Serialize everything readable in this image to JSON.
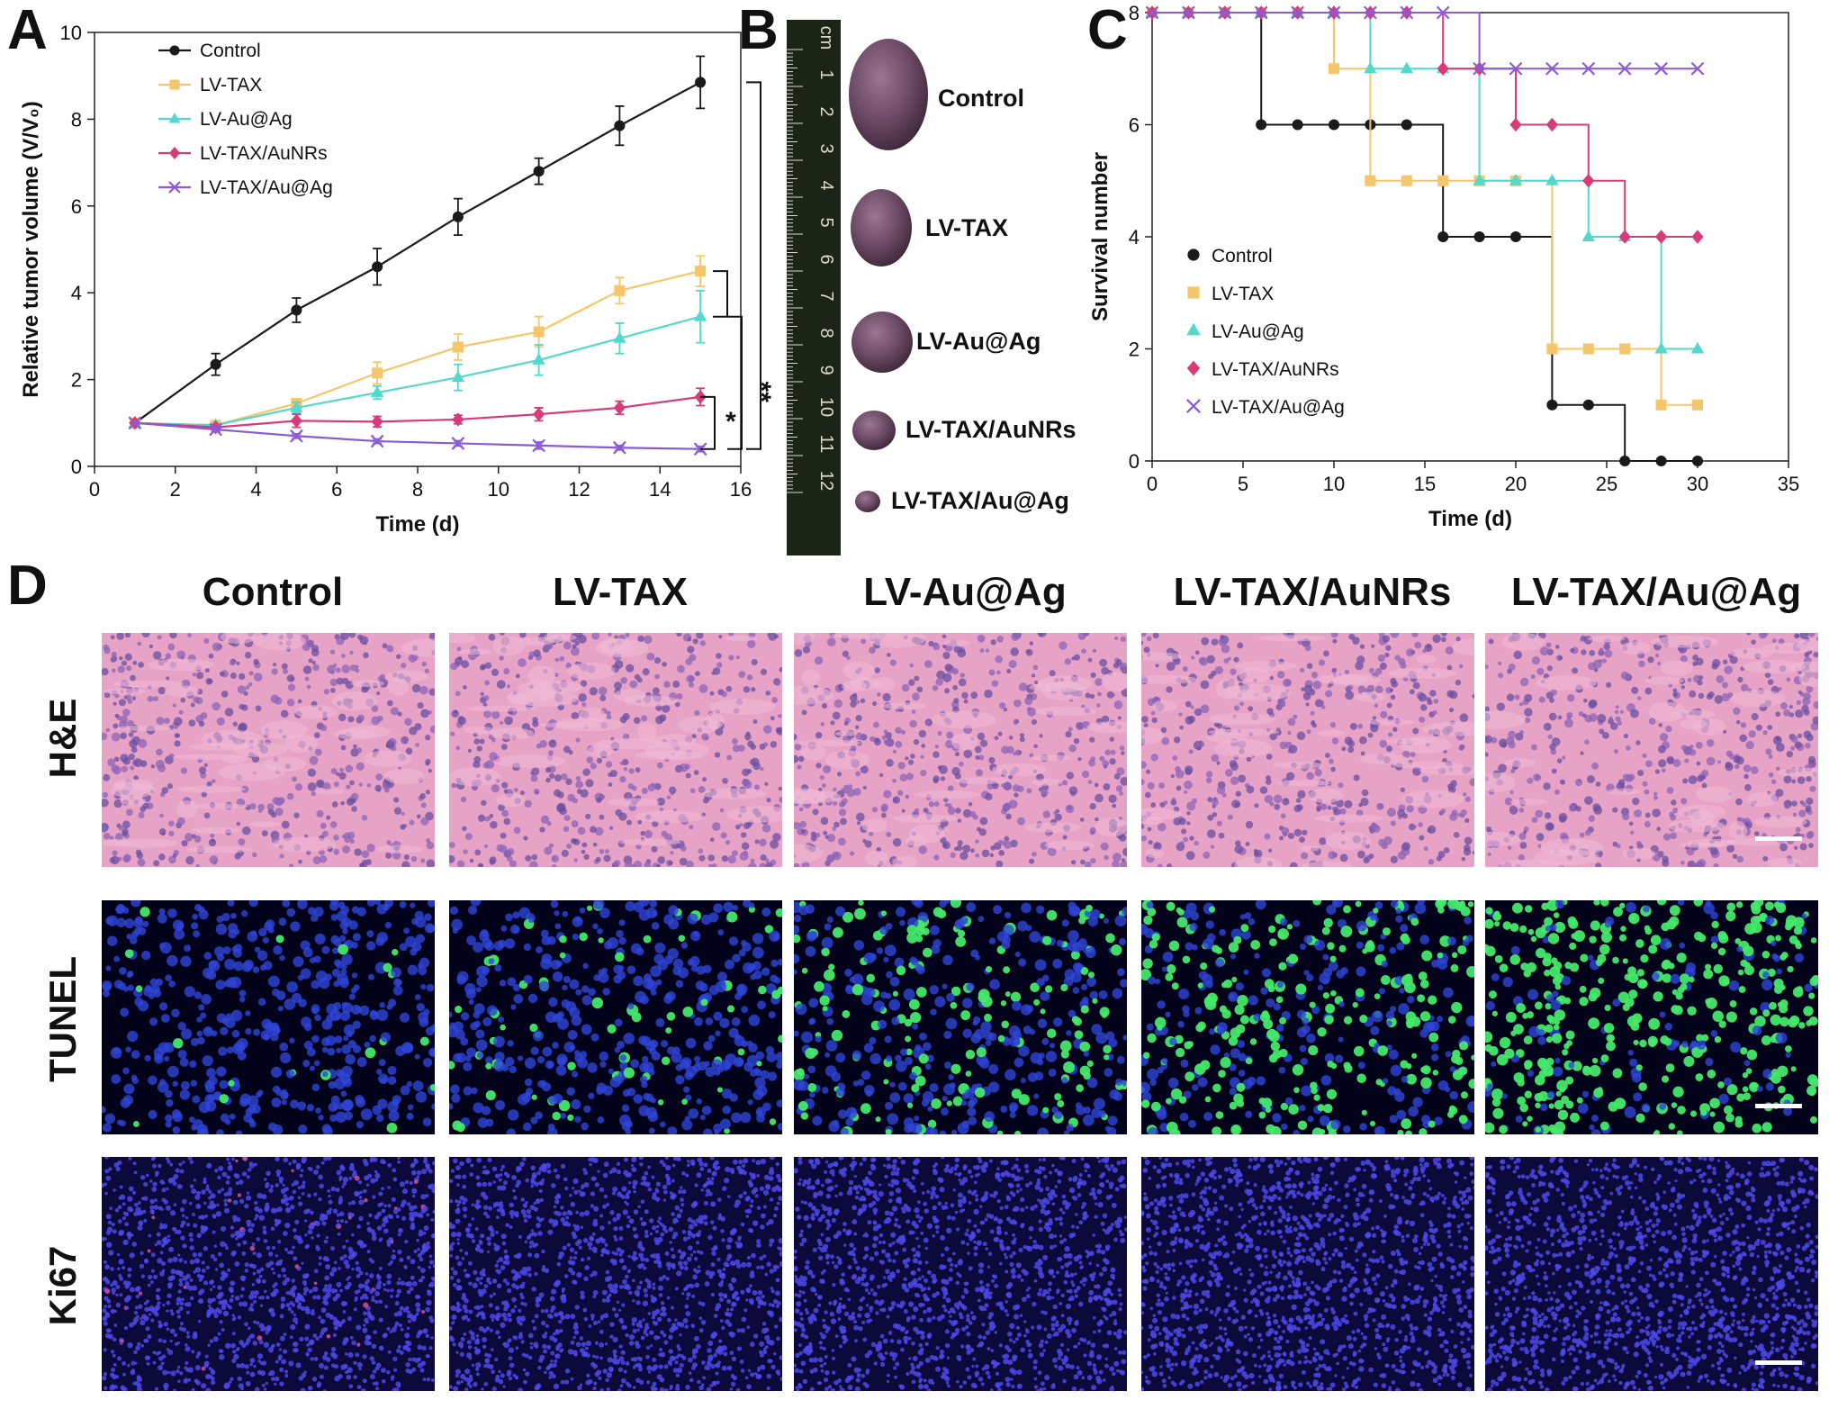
{
  "panels": {
    "a": "A",
    "b": "B",
    "c": "C",
    "d": "D"
  },
  "colors": {
    "Control": "#1a1a1a",
    "LV-TAX": "#f6c66a",
    "LV-Au@Ag": "#52d8cc",
    "LV-TAX/AuNRs": "#d93a7a",
    "LV-TAX/Au@Ag": "#8a5bd6"
  },
  "chart_data": [
    {
      "type": "line",
      "panel": "A",
      "xlabel": "Time (d)",
      "ylabel": "Relative tumor volume (V/V₀)",
      "xlim": [
        0,
        16
      ],
      "ylim": [
        0,
        10
      ],
      "xticks": [
        "0",
        "2",
        "4",
        "6",
        "8",
        "10",
        "12",
        "14",
        "16"
      ],
      "yticks": [
        "0",
        "2",
        "4",
        "6",
        "8",
        "10"
      ],
      "x": [
        1,
        3,
        5,
        7,
        9,
        11,
        13,
        15
      ],
      "legend_position": "top-left",
      "series": [
        {
          "name": "Control",
          "marker": "circle",
          "values": [
            1.0,
            2.35,
            3.6,
            4.6,
            5.75,
            6.8,
            7.85,
            8.85
          ],
          "errors": [
            0,
            0.25,
            0.28,
            0.42,
            0.42,
            0.3,
            0.45,
            0.6
          ]
        },
        {
          "name": "LV-TAX",
          "marker": "square",
          "values": [
            1.0,
            0.95,
            1.45,
            2.15,
            2.75,
            3.1,
            4.05,
            4.5
          ],
          "errors": [
            0,
            0.05,
            0.1,
            0.25,
            0.3,
            0.35,
            0.3,
            0.35
          ]
        },
        {
          "name": "LV-Au@Ag",
          "marker": "triangle",
          "values": [
            1.0,
            0.95,
            1.35,
            1.7,
            2.05,
            2.45,
            2.95,
            3.45
          ],
          "errors": [
            0,
            0.05,
            0.12,
            0.15,
            0.3,
            0.35,
            0.35,
            0.6
          ]
        },
        {
          "name": "LV-TAX/AuNRs",
          "marker": "diamond",
          "values": [
            1.0,
            0.9,
            1.05,
            1.03,
            1.08,
            1.2,
            1.35,
            1.6
          ],
          "errors": [
            0,
            0.05,
            0.15,
            0.12,
            0.1,
            0.15,
            0.15,
            0.2
          ]
        },
        {
          "name": "LV-TAX/Au@Ag",
          "marker": "x",
          "values": [
            1.0,
            0.85,
            0.7,
            0.58,
            0.53,
            0.48,
            0.43,
            0.4
          ],
          "errors": [
            0,
            0.05,
            0.05,
            0.05,
            0.06,
            0.08,
            0.05,
            0.06
          ]
        }
      ],
      "significance": [
        "***",
        "**",
        "*"
      ]
    },
    {
      "type": "line",
      "panel": "C",
      "xlabel": "Time (d)",
      "ylabel": "Survival number",
      "xlim": [
        0,
        35
      ],
      "ylim": [
        0,
        8
      ],
      "xticks": [
        "0",
        "5",
        "10",
        "15",
        "20",
        "25",
        "30",
        "35"
      ],
      "yticks": [
        "0",
        "2",
        "4",
        "6",
        "8"
      ],
      "legend_position": "center-left",
      "step": true,
      "series": [
        {
          "name": "Control",
          "marker": "circle",
          "x": [
            0,
            2,
            4,
            6,
            8,
            10,
            12,
            14,
            16,
            18,
            20,
            22,
            24,
            26,
            28,
            30
          ],
          "values": [
            8,
            8,
            8,
            6,
            6,
            6,
            6,
            6,
            4,
            4,
            4,
            1,
            1,
            0,
            0,
            0
          ]
        },
        {
          "name": "LV-TAX",
          "marker": "square",
          "x": [
            0,
            2,
            4,
            6,
            8,
            10,
            12,
            14,
            16,
            18,
            20,
            22,
            24,
            26,
            28,
            30
          ],
          "values": [
            8,
            8,
            8,
            8,
            8,
            7,
            5,
            5,
            5,
            5,
            5,
            2,
            2,
            2,
            1,
            1
          ]
        },
        {
          "name": "LV-Au@Ag",
          "marker": "triangle",
          "x": [
            0,
            2,
            4,
            6,
            8,
            10,
            12,
            14,
            16,
            18,
            20,
            22,
            24,
            26,
            28,
            30
          ],
          "values": [
            8,
            8,
            8,
            8,
            8,
            8,
            7,
            7,
            7,
            5,
            5,
            5,
            4,
            4,
            2,
            2
          ]
        },
        {
          "name": "LV-TAX/AuNRs",
          "marker": "diamond",
          "x": [
            0,
            2,
            4,
            6,
            8,
            10,
            12,
            14,
            16,
            18,
            20,
            22,
            24,
            26,
            28,
            30
          ],
          "values": [
            8,
            8,
            8,
            8,
            8,
            8,
            8,
            8,
            7,
            7,
            6,
            6,
            5,
            4,
            4,
            4
          ]
        },
        {
          "name": "LV-TAX/Au@Ag",
          "marker": "x",
          "x": [
            0,
            2,
            4,
            6,
            8,
            10,
            12,
            14,
            16,
            18,
            20,
            22,
            24,
            26,
            28,
            30
          ],
          "values": [
            8,
            8,
            8,
            8,
            8,
            8,
            8,
            8,
            8,
            7,
            7,
            7,
            7,
            7,
            7,
            7
          ]
        }
      ]
    }
  ],
  "tumors": {
    "labels": [
      "Control",
      "LV-TAX",
      "LV-Au@Ag",
      "LV-TAX/AuNRs",
      "LV-TAX/Au@Ag"
    ],
    "ruler_ticks": [
      "cm",
      "1",
      "2",
      "3",
      "4",
      "5",
      "6",
      "7",
      "8",
      "9",
      "10",
      "11",
      "12"
    ]
  },
  "histology": {
    "columns": [
      "Control",
      "LV-TAX",
      "LV-Au@Ag",
      "LV-TAX/AuNRs",
      "LV-TAX/Au@Ag"
    ],
    "rows": [
      "H&E",
      "TUNEL",
      "Ki67"
    ]
  }
}
